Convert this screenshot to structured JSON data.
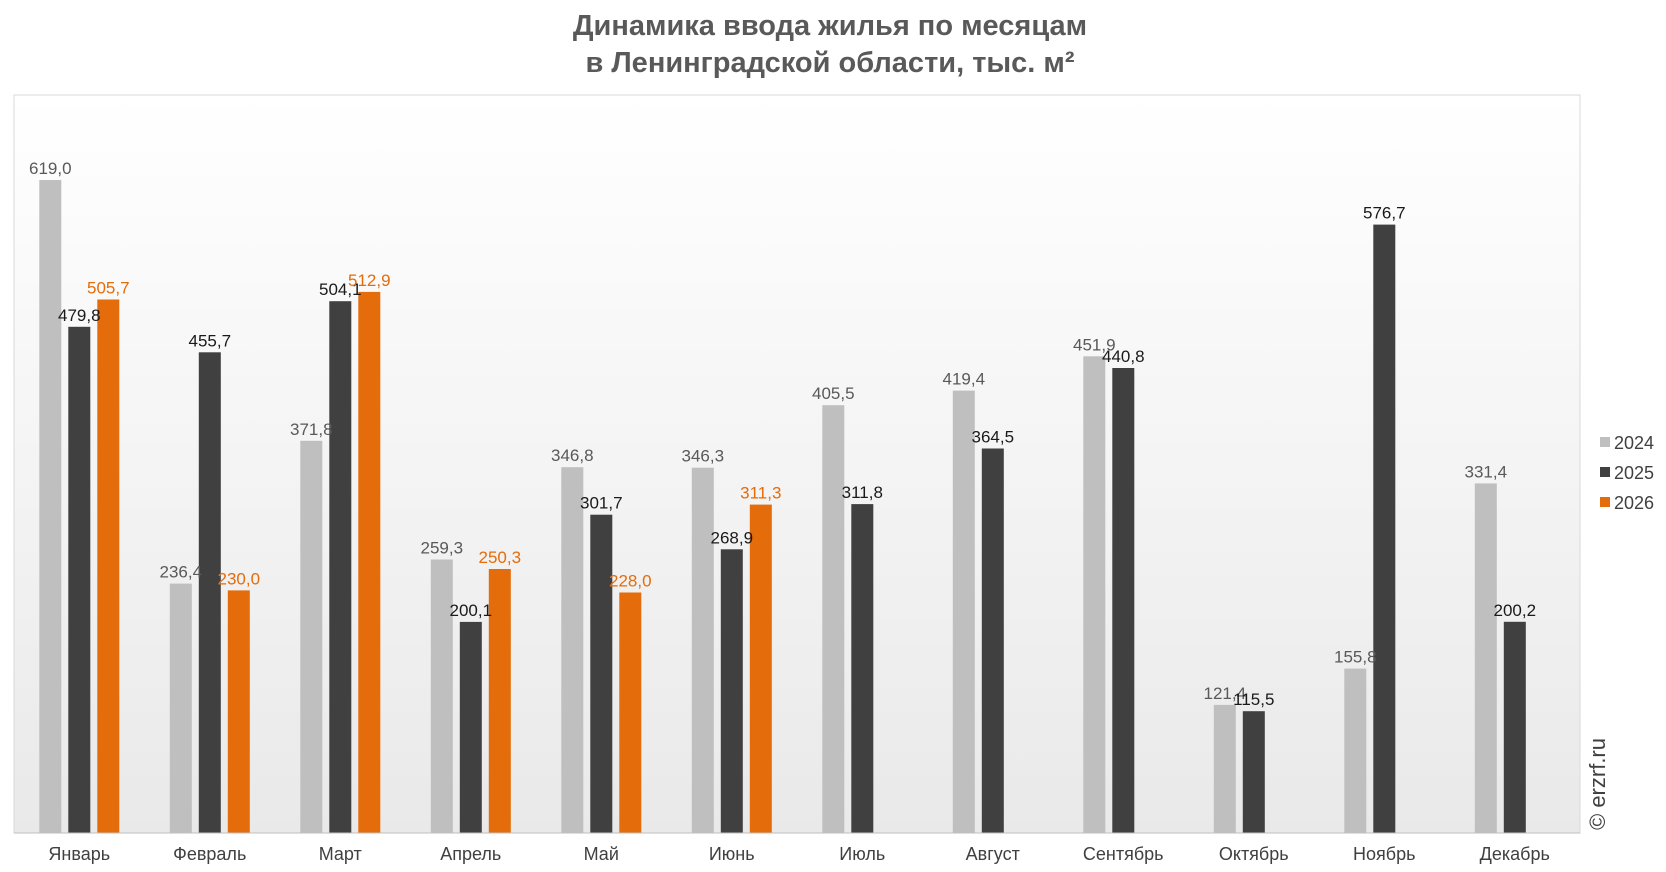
{
  "chart_data": {
    "type": "bar",
    "title": "Динамика ввода жилья по месяцам",
    "subtitle": "в Ленинградской области, тыс. м²",
    "xlabel": "",
    "ylabel": "",
    "ylim": [
      0,
      700
    ],
    "grid": false,
    "legend_position": "right",
    "categories": [
      "Январь",
      "Февраль",
      "Март",
      "Апрель",
      "Май",
      "Июнь",
      "Июль",
      "Август",
      "Сентябрь",
      "Октябрь",
      "Ноябрь",
      "Декабрь"
    ],
    "series": [
      {
        "name": "2024",
        "color": "#bfbfbf",
        "label_color": "#595959",
        "values": [
          619.0,
          236.4,
          371.8,
          259.3,
          346.8,
          346.3,
          405.5,
          419.4,
          451.9,
          121.4,
          155.8,
          331.4
        ],
        "labels": [
          "619,0",
          "236,4",
          "371,8",
          "259,3",
          "346,8",
          "346,3",
          "405,5",
          "419,4",
          "451,9",
          "121,4",
          "155,8",
          "331,4"
        ]
      },
      {
        "name": "2025",
        "color": "#404040",
        "label_color": "#1a1a1a",
        "values": [
          479.8,
          455.7,
          504.1,
          200.1,
          301.7,
          268.9,
          311.8,
          364.5,
          440.8,
          115.5,
          576.7,
          200.2
        ],
        "labels": [
          "479,8",
          "455,7",
          "504,1",
          "200,1",
          "301,7",
          "268,9",
          "311,8",
          "364,5",
          "440,8",
          "115,5",
          "576,7",
          "200,2"
        ]
      },
      {
        "name": "2026",
        "color": "#e46c0a",
        "label_color": "#e46c0a",
        "values": [
          505.7,
          230.0,
          512.9,
          250.3,
          228.0,
          311.3,
          null,
          null,
          null,
          null,
          null,
          null
        ],
        "labels": [
          "505,7",
          "230,0",
          "512,9",
          "250,3",
          "228,0",
          "311,3",
          null,
          null,
          null,
          null,
          null,
          null
        ]
      }
    ]
  },
  "watermark": "© erzrf.ru"
}
